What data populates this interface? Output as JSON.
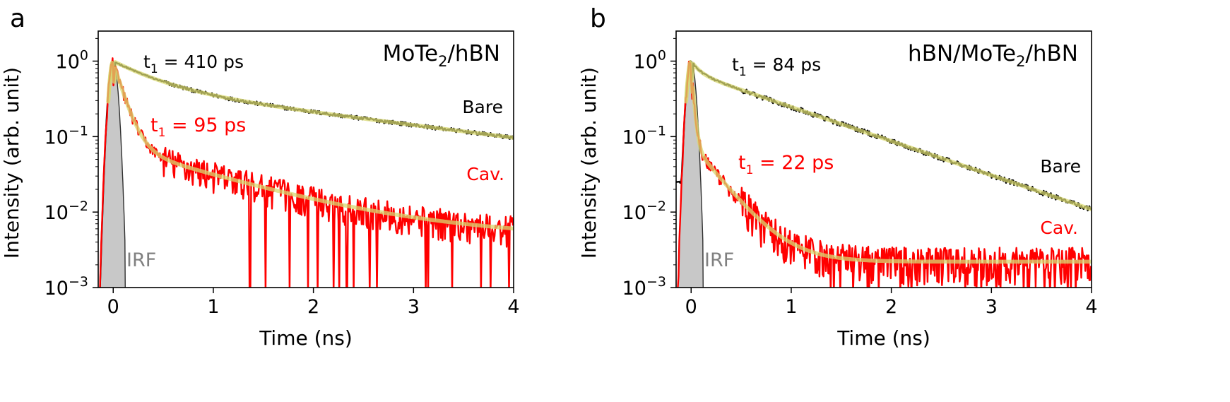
{
  "chart_data": [
    {
      "panel": "a",
      "type": "line",
      "sample": "MoTe",
      "sample_sub": "2",
      "sample_suffix": "/hBN",
      "xlabel": "Time (ns)",
      "ylabel": "Intensity (arb. unit)",
      "xlim": [
        -0.15,
        4
      ],
      "ylim": [
        0.001,
        2.5
      ],
      "yscale": "log",
      "xticks": [
        0,
        1,
        2,
        3,
        4
      ],
      "yticks": [
        {
          "value": 1,
          "base": "10",
          "exp": "0"
        },
        {
          "value": 0.1,
          "base": "10",
          "exp": "−1"
        },
        {
          "value": 0.01,
          "base": "10",
          "exp": "−2"
        },
        {
          "value": 0.001,
          "base": "10",
          "exp": "−3"
        }
      ],
      "annotations": {
        "bare_t1": {
          "prefix": "t",
          "sub": "1",
          "text": " = 410 ps"
        },
        "cav_t1": {
          "prefix": "t",
          "sub": "1",
          "text": " = 95 ps"
        }
      },
      "series": [
        {
          "name": "Bare",
          "color": "#000000",
          "tau1": 0.41,
          "amp": [
            0.55,
            0.45
          ],
          "tau": [
            0.41,
            2.6
          ],
          "floor": 0.0,
          "noise": 0.06
        },
        {
          "name": "Cav.",
          "color": "#ff0000",
          "tau1": 0.095,
          "amp": [
            0.9,
            0.07
          ],
          "tau": [
            0.095,
            1.05
          ],
          "floor": 0.0045,
          "noise": 0.45
        },
        {
          "name": "IRF",
          "color": "#808080",
          "fill": "#c8c8c8",
          "center": 0.0,
          "width": 0.05
        }
      ]
    },
    {
      "panel": "b",
      "type": "line",
      "sample": "hBN/MoTe",
      "sample_sub": "2",
      "sample_suffix": "/hBN",
      "xlabel": "Time (ns)",
      "ylabel": "Intensity (arb. unit)",
      "xlim": [
        -0.15,
        4
      ],
      "ylim": [
        0.001,
        2.5
      ],
      "yscale": "log",
      "xticks": [
        0,
        1,
        2,
        3,
        4
      ],
      "yticks": [
        {
          "value": 1,
          "base": "10",
          "exp": "0"
        },
        {
          "value": 0.1,
          "base": "10",
          "exp": "−1"
        },
        {
          "value": 0.01,
          "base": "10",
          "exp": "−2"
        },
        {
          "value": 0.001,
          "base": "10",
          "exp": "−3"
        }
      ],
      "annotations": {
        "bare_t1": {
          "prefix": "t",
          "sub": "1",
          "text": " = 84 ps"
        },
        "cav_t1": {
          "prefix": "t",
          "sub": "1",
          "text": " = 22 ps"
        }
      },
      "series": [
        {
          "name": "Bare",
          "color": "#000000",
          "tau1": 0.084,
          "amp": [
            0.3,
            0.7
          ],
          "tau": [
            0.084,
            0.96
          ],
          "floor": 0.0,
          "noise": 0.08
        },
        {
          "name": "Cav.",
          "color": "#ff0000",
          "tau1": 0.022,
          "amp": [
            0.9,
            0.08
          ],
          "tau": [
            0.022,
            0.26
          ],
          "floor": 0.0022,
          "noise": 0.55
        },
        {
          "name": "IRF",
          "color": "#808080",
          "fill": "#c8c8c8",
          "center": 0.0,
          "width": 0.05
        }
      ]
    }
  ],
  "irf_label": "IRF"
}
